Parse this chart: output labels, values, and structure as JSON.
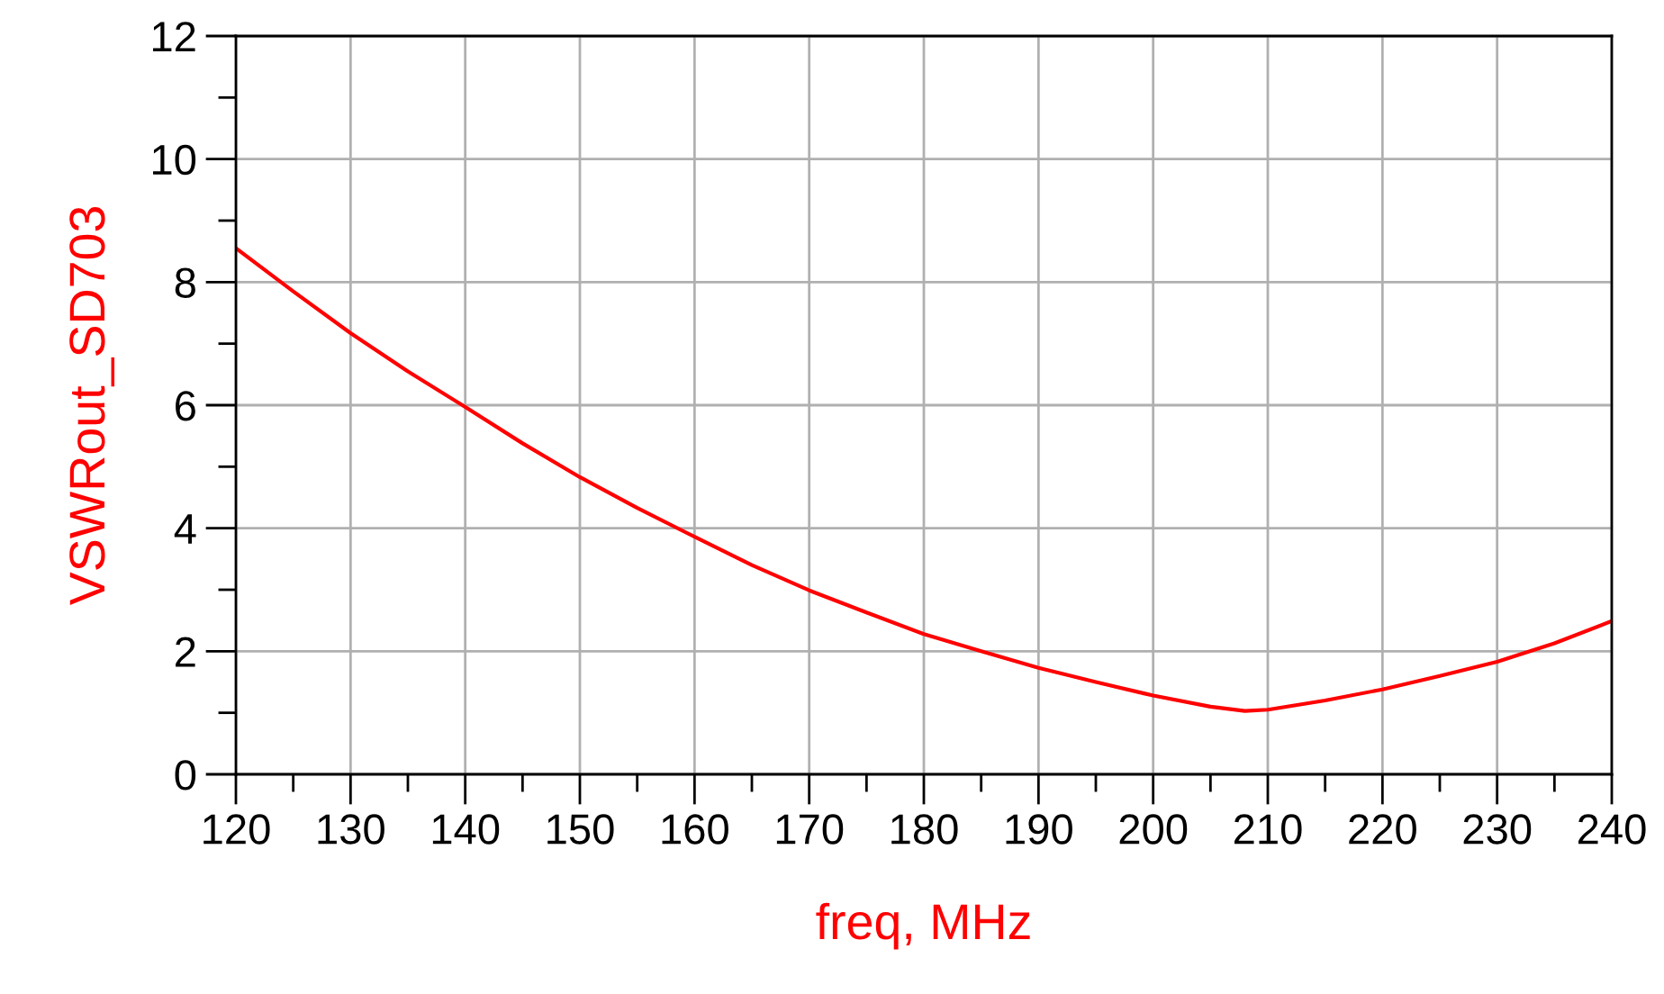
{
  "chart_data": {
    "type": "line",
    "xlabel": "freq, MHz",
    "ylabel": "VSWRout_SD703",
    "x": [
      120,
      125,
      130,
      135,
      140,
      145,
      150,
      155,
      160,
      165,
      170,
      175,
      180,
      185,
      190,
      195,
      200,
      205,
      208,
      210,
      215,
      220,
      225,
      230,
      235,
      240
    ],
    "series": [
      {
        "color": "#ff0000",
        "values": [
          8.55,
          7.85,
          7.17,
          6.55,
          5.97,
          5.38,
          4.83,
          4.33,
          3.86,
          3.4,
          2.99,
          2.63,
          2.28,
          2.0,
          1.73,
          1.5,
          1.28,
          1.1,
          1.03,
          1.05,
          1.2,
          1.38,
          1.6,
          1.83,
          2.13,
          2.49
        ]
      }
    ],
    "xlim": [
      120,
      240
    ],
    "ylim": [
      0,
      12
    ],
    "xticks": [
      120,
      {
        "value": 125,
        "label": null
      },
      130,
      {
        "value": 135,
        "label": null
      },
      140,
      {
        "value": 145,
        "label": null
      },
      150,
      {
        "value": 155,
        "label": null
      },
      160,
      {
        "value": 165,
        "label": null
      },
      170,
      {
        "value": 175,
        "label": null
      },
      180,
      {
        "value": 185,
        "label": null
      },
      190,
      {
        "value": 195,
        "label": null
      },
      200,
      {
        "value": 205,
        "label": null
      },
      210,
      {
        "value": 215,
        "label": null
      },
      220,
      {
        "value": 225,
        "label": null
      },
      230,
      {
        "value": 235,
        "label": null
      },
      240
    ],
    "yticks": [
      0,
      {
        "value": 1,
        "label": null
      },
      2,
      {
        "value": 3,
        "label": null
      },
      4,
      {
        "value": 5,
        "label": null
      },
      6,
      {
        "value": 7,
        "label": null
      },
      8,
      {
        "value": 9,
        "label": null
      },
      10,
      {
        "value": 11,
        "label": null
      },
      12
    ],
    "grid": true,
    "line_style": "solid",
    "marker": "none"
  }
}
